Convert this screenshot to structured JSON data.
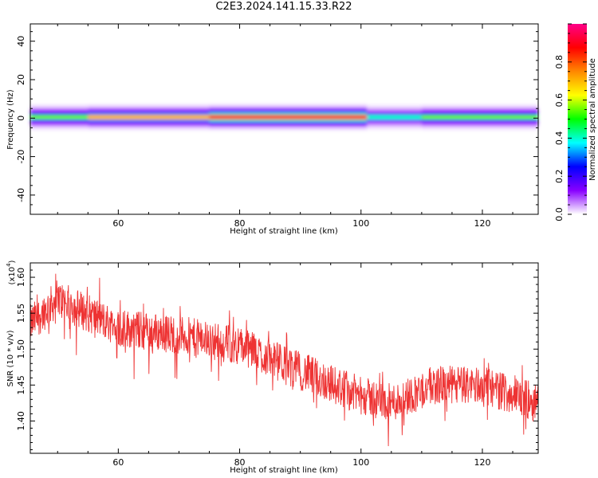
{
  "title": "C2E3.2024.141.15.33.R22",
  "chart_data": [
    {
      "type": "heatmap",
      "xlabel": "Height of straight line (km)",
      "ylabel": "Frequency (Hz)",
      "xlim": [
        45.5,
        129.2
      ],
      "ylim": [
        -50,
        49
      ],
      "xticks": [
        60,
        80,
        100,
        120
      ],
      "yticks": [
        -40,
        -20,
        0,
        20,
        40
      ],
      "colorbar": {
        "label": "Normalized spectral amplitude",
        "range": [
          0,
          1
        ],
        "ticks": [
          0.0,
          0.2,
          0.4,
          0.6,
          0.8
        ],
        "tick_labels": [
          "0.0",
          "0.2",
          "0.4",
          "0.6",
          "0.8"
        ],
        "colors": [
          "#ffffff",
          "#8800ff",
          "#0000ff",
          "#00ffff",
          "#00ff00",
          "#ffff00",
          "#ff8800",
          "#ff0000",
          "#ff0088"
        ]
      },
      "band": {
        "center_hz": 0.5,
        "halfwidth_hz": 3,
        "segments": [
          {
            "x": [
              45.5,
              55
            ],
            "level": 0.55
          },
          {
            "x": [
              55,
              75
            ],
            "level": 0.7
          },
          {
            "x": [
              75,
              101
            ],
            "level": 0.9
          },
          {
            "x": [
              101,
              110
            ],
            "level": 0.4
          },
          {
            "x": [
              110,
              129.2
            ],
            "level": 0.55
          }
        ]
      },
      "grid": false
    },
    {
      "type": "line",
      "xlabel": "Height of straight line (km)",
      "ylabel": "SNR (10 * v/v)",
      "multiplier_label": "(x10",
      "multiplier_exp": "4",
      "multiplier_close": ")",
      "xlim": [
        45.5,
        129.2
      ],
      "ylim": [
        1.355,
        1.62
      ],
      "xticks": [
        60,
        80,
        100,
        120
      ],
      "yticks": [
        1.4,
        1.45,
        1.5,
        1.55,
        1.6
      ],
      "ytick_labels": [
        "1.40",
        "1.45",
        "1.50",
        "1.55",
        "1.60"
      ],
      "color": "#ee3333",
      "trend": {
        "x": [
          45.5,
          50,
          60,
          70,
          80,
          90,
          100,
          105,
          112,
          120,
          129.2
        ],
        "y": [
          1.535,
          1.57,
          1.53,
          1.52,
          1.505,
          1.47,
          1.435,
          1.425,
          1.45,
          1.45,
          1.425
        ]
      },
      "noise_amplitude": 0.03,
      "grid": false
    }
  ]
}
